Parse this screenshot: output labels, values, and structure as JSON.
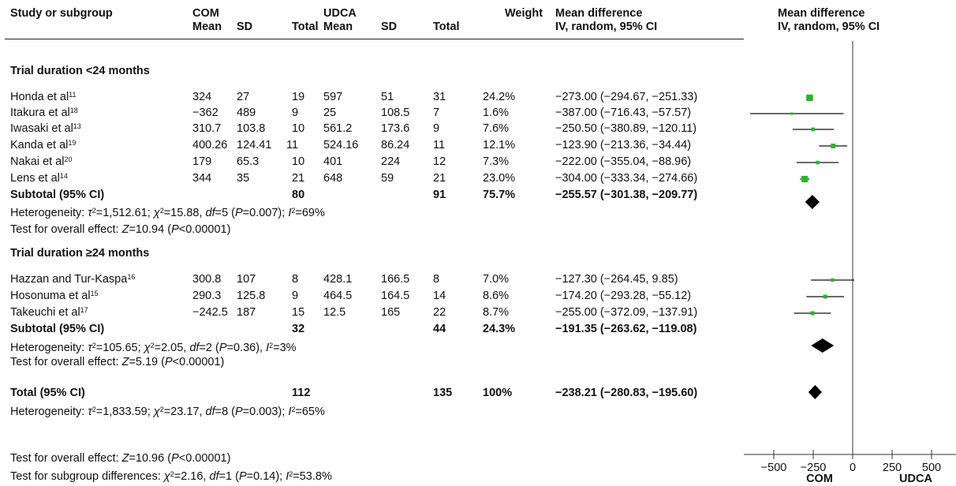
{
  "headers": {
    "study": "Study or subgroup",
    "com": "COM",
    "udca": "UDCA",
    "mean1": "Mean",
    "sd1": "SD",
    "total1": "Total",
    "mean2": "Mean",
    "sd2": "SD",
    "total2": "Total",
    "weight": "Weight",
    "md_text_1": "Mean difference",
    "md_text_2": "IV, random, 95% CI",
    "md_plot_1": "Mean difference",
    "md_plot_2": "IV, random, 95% CI"
  },
  "groups": [
    {
      "title": "Trial duration <24 months",
      "studies": [
        {
          "name": "Honda et al",
          "ref": "11",
          "m1": "324",
          "sd1": "27",
          "n1": "19",
          "m2": "597",
          "sd2": "51",
          "n2": "31",
          "weight": "24.2%",
          "ci": "−273.00 (−294.67, −251.33)"
        },
        {
          "name": "Itakura et al",
          "ref": "18",
          "m1": "−362",
          "sd1": "489",
          "n1": "9",
          "m2": "25",
          "sd2": "108.5",
          "n2": "7",
          "weight": "1.6%",
          "ci": "−387.00 (−716.43, −57.57)"
        },
        {
          "name": "Iwasaki et al",
          "ref": "13",
          "m1": "310.7",
          "sd1": "103.8",
          "n1": "10",
          "m2": "561.2",
          "sd2": "173.6",
          "n2": "9",
          "weight": "7.6%",
          "ci": "−250.50 (−380.89, −120.11)"
        },
        {
          "name": "Kanda et al",
          "ref": "19",
          "m1": "400.26",
          "sd1": "124.41",
          "n1": "11",
          "m2": "524.16",
          "sd2": "86.24",
          "n2": "11",
          "weight": "12.1%",
          "ci": "−123.90 (−213.36, −34.44)"
        },
        {
          "name": "Nakai et al",
          "ref": "20",
          "m1": "179",
          "sd1": "65.3",
          "n1": "10",
          "m2": "401",
          "sd2": "224",
          "n2": "12",
          "weight": "7.3%",
          "ci": "−222.00 (−355.04, −88.96)"
        },
        {
          "name": "Lens et al",
          "ref": "14",
          "m1": "344",
          "sd1": "35",
          "n1": "21",
          "m2": "648",
          "sd2": "59",
          "n2": "21",
          "weight": "23.0%",
          "ci": "−304.00 (−333.34, −274.66)"
        }
      ],
      "subtotal": {
        "label": "Subtotal (95% CI)",
        "n1": "80",
        "n2": "91",
        "weight": "75.7%",
        "ci": "−255.57 (−301.38, −209.77)"
      },
      "heterogeneity": {
        "prefix": "Heterogeneity: ",
        "tau": "τ",
        "tau_val": "=1,512.61; ",
        "chi": "χ",
        "chi_val": "=15.88, ",
        "df": "df",
        "df_val": "=5 (",
        "p": "P",
        "p_val": "=0.007); ",
        "i": "I",
        "i_val": "=69%"
      },
      "overall": {
        "prefix": "Test for overall effect: ",
        "z": "Z",
        "z_val": "=10.94 (",
        "p": "P",
        "p_val": "<0.00001)"
      }
    },
    {
      "title": "Trial duration ≥24 months",
      "studies": [
        {
          "name": "Hazzan and Tur-Kaspa",
          "ref": "16",
          "m1": "300.8",
          "sd1": "107",
          "n1": "8",
          "m2": "428.1",
          "sd2": "166.5",
          "n2": "8",
          "weight": "7.0%",
          "ci": "−127.30 (−264.45, 9.85)"
        },
        {
          "name": "Hosonuma et al",
          "ref": "15",
          "m1": "290.3",
          "sd1": "125.8",
          "n1": "9",
          "m2": "464.5",
          "sd2": "164.5",
          "n2": "14",
          "weight": "8.6%",
          "ci": "−174.20 (−293.28, −55.12)"
        },
        {
          "name": "Takeuchi et al",
          "ref": "17",
          "m1": "−242.5",
          "sd1": "187",
          "n1": "15",
          "m2": "12.5",
          "sd2": "165",
          "n2": "22",
          "weight": "8.7%",
          "ci": "−255.00 (−372.09, −137.91)"
        }
      ],
      "subtotal": {
        "label": "Subtotal (95% CI)",
        "n1": "32",
        "n2": "44",
        "weight": "24.3%",
        "ci": "−191.35 (−263.62, −119.08)"
      },
      "heterogeneity": {
        "prefix": "Heterogeneity: ",
        "tau": "τ",
        "tau_val": "=105.65; ",
        "chi": "χ",
        "chi_val": "=2.05, ",
        "df": "df",
        "df_val": "=2 (",
        "p": "P",
        "p_val": "=0.36), ",
        "i": "I",
        "i_val": "=3%"
      },
      "overall": {
        "prefix": "Test for overall effect: ",
        "z": "Z",
        "z_val": "=5.19 (",
        "p": "P",
        "p_val": "<0.00001)"
      }
    }
  ],
  "total": {
    "label": "Total (95% CI)",
    "n1": "112",
    "n2": "135",
    "weight": "100%",
    "ci": "−238.21 (−280.83, −195.60)"
  },
  "total_heterogeneity": {
    "prefix": "Heterogeneity: ",
    "tau": "τ",
    "tau_val": "=1,833.59; ",
    "chi": "χ",
    "chi_val": "=23.17, ",
    "df": "df",
    "df_val": "=8 (",
    "p": "P",
    "p_val": "=0.003); ",
    "i": "I",
    "i_val": "=65%"
  },
  "total_overall": {
    "prefix": "Test for overall effect: ",
    "z": "Z",
    "z_val": "=10.96 (",
    "p": "P",
    "p_val": "<0.00001)"
  },
  "subgroup_diff": {
    "prefix": "Test for subgroup differences: ",
    "chi": "χ",
    "chi_val": "=2.16, ",
    "df": "df",
    "df_val": "=1 (",
    "p": "P",
    "p_val": "=0.14); ",
    "i": "I",
    "i_val": "=53.8%"
  },
  "sup2": "2",
  "colors": {
    "point": "#22bb22",
    "line": "#111111",
    "diamond": "#000000"
  },
  "chart_data": {
    "type": "forest",
    "xlim": [
      -650,
      650
    ],
    "xticks": [
      -500,
      -250,
      0,
      250,
      500
    ],
    "xtick_labels": [
      "−500",
      "−250",
      "0",
      "250",
      "500"
    ],
    "left_label": "COM",
    "right_label": "UDCA",
    "studies": [
      {
        "name": "Honda et al",
        "est": -273.0,
        "lo": -294.67,
        "hi": -251.33,
        "weight": 24.2
      },
      {
        "name": "Itakura et al",
        "est": -387.0,
        "lo": -716.43,
        "hi": -57.57,
        "weight": 1.6
      },
      {
        "name": "Iwasaki et al",
        "est": -250.5,
        "lo": -380.89,
        "hi": -120.11,
        "weight": 7.6
      },
      {
        "name": "Kanda et al",
        "est": -123.9,
        "lo": -213.36,
        "hi": -34.44,
        "weight": 12.1
      },
      {
        "name": "Nakai et al",
        "est": -222.0,
        "lo": -355.04,
        "hi": -88.96,
        "weight": 7.3
      },
      {
        "name": "Lens et al",
        "est": -304.0,
        "lo": -333.34,
        "hi": -274.66,
        "weight": 23.0
      },
      {
        "name": "Subtotal (95% CI)",
        "est": -255.57,
        "lo": -301.38,
        "hi": -209.77,
        "summary": true
      },
      {
        "name": "Hazzan and Tur-Kaspa",
        "est": -127.3,
        "lo": -264.45,
        "hi": 9.85,
        "weight": 7.0
      },
      {
        "name": "Hosonuma et al",
        "est": -174.2,
        "lo": -293.28,
        "hi": -55.12,
        "weight": 8.6
      },
      {
        "name": "Takeuchi et al",
        "est": -255.0,
        "lo": -372.09,
        "hi": -137.91,
        "weight": 8.7
      },
      {
        "name": "Subtotal (95% CI)",
        "est": -191.35,
        "lo": -263.62,
        "hi": -119.08,
        "summary": true
      },
      {
        "name": "Total (95% CI)",
        "est": -238.21,
        "lo": -280.83,
        "hi": -195.6,
        "summary": true
      }
    ]
  }
}
